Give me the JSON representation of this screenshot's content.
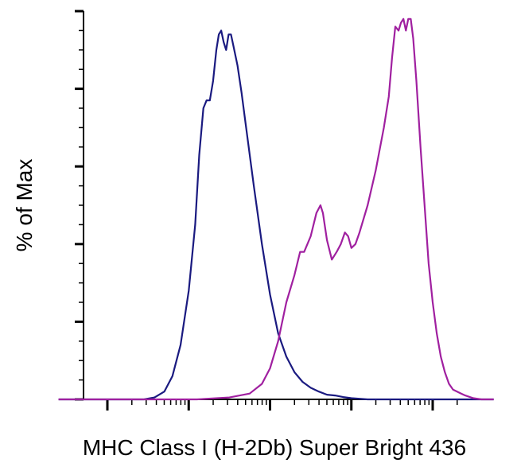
{
  "chart_data": {
    "type": "line",
    "title": "",
    "xlabel": "MHC Class I (H-2Db) Super Bright 436",
    "ylabel": "% of Max",
    "x_scale": "log",
    "xlim": [
      -1.6,
      3.75
    ],
    "ylim": [
      0,
      100
    ],
    "grid": false,
    "legend": "none",
    "series": [
      {
        "color": "#1a1a80",
        "points": [
          [
            -1.6,
            0
          ],
          [
            -0.55,
            0
          ],
          [
            -0.42,
            0.5
          ],
          [
            -0.3,
            2
          ],
          [
            -0.2,
            6
          ],
          [
            -0.1,
            14
          ],
          [
            0.0,
            28
          ],
          [
            0.08,
            45
          ],
          [
            0.13,
            63
          ],
          [
            0.18,
            75
          ],
          [
            0.22,
            77
          ],
          [
            0.26,
            77
          ],
          [
            0.3,
            82
          ],
          [
            0.34,
            90
          ],
          [
            0.37,
            94
          ],
          [
            0.4,
            95
          ],
          [
            0.43,
            92
          ],
          [
            0.46,
            90
          ],
          [
            0.49,
            94
          ],
          [
            0.52,
            94
          ],
          [
            0.55,
            91
          ],
          [
            0.6,
            86
          ],
          [
            0.65,
            79
          ],
          [
            0.7,
            71
          ],
          [
            0.8,
            55
          ],
          [
            0.9,
            40
          ],
          [
            1.0,
            27
          ],
          [
            1.1,
            17
          ],
          [
            1.2,
            11
          ],
          [
            1.3,
            7
          ],
          [
            1.4,
            4.5
          ],
          [
            1.5,
            3
          ],
          [
            1.6,
            2
          ],
          [
            1.7,
            1.2
          ],
          [
            1.8,
            1
          ],
          [
            1.9,
            0.6
          ],
          [
            2.0,
            0.3
          ],
          [
            2.2,
            0
          ],
          [
            3.75,
            0
          ]
        ]
      },
      {
        "color": "#a020a0",
        "points": [
          [
            -1.6,
            0
          ],
          [
            0.1,
            0
          ],
          [
            0.5,
            0.5
          ],
          [
            0.75,
            1.5
          ],
          [
            0.9,
            4
          ],
          [
            1.0,
            8
          ],
          [
            1.1,
            15
          ],
          [
            1.2,
            25
          ],
          [
            1.3,
            32
          ],
          [
            1.37,
            38
          ],
          [
            1.42,
            38
          ],
          [
            1.5,
            42
          ],
          [
            1.57,
            48
          ],
          [
            1.62,
            50
          ],
          [
            1.65,
            48
          ],
          [
            1.7,
            41
          ],
          [
            1.76,
            36
          ],
          [
            1.82,
            38
          ],
          [
            1.87,
            40
          ],
          [
            1.92,
            43
          ],
          [
            1.96,
            42
          ],
          [
            2.0,
            39
          ],
          [
            2.05,
            40
          ],
          [
            2.1,
            43
          ],
          [
            2.2,
            50
          ],
          [
            2.3,
            59
          ],
          [
            2.4,
            70
          ],
          [
            2.46,
            78
          ],
          [
            2.5,
            88
          ],
          [
            2.54,
            96
          ],
          [
            2.58,
            95
          ],
          [
            2.61,
            97
          ],
          [
            2.64,
            98
          ],
          [
            2.67,
            95
          ],
          [
            2.7,
            98
          ],
          [
            2.73,
            98
          ],
          [
            2.76,
            93
          ],
          [
            2.8,
            82
          ],
          [
            2.85,
            65
          ],
          [
            2.9,
            50
          ],
          [
            2.95,
            35
          ],
          [
            3.0,
            25
          ],
          [
            3.05,
            17
          ],
          [
            3.1,
            11
          ],
          [
            3.15,
            7
          ],
          [
            3.2,
            4
          ],
          [
            3.25,
            2.5
          ],
          [
            3.3,
            2
          ],
          [
            3.35,
            1.5
          ],
          [
            3.4,
            1
          ],
          [
            3.5,
            0.3
          ],
          [
            3.6,
            0
          ],
          [
            3.75,
            0
          ]
        ]
      }
    ]
  }
}
